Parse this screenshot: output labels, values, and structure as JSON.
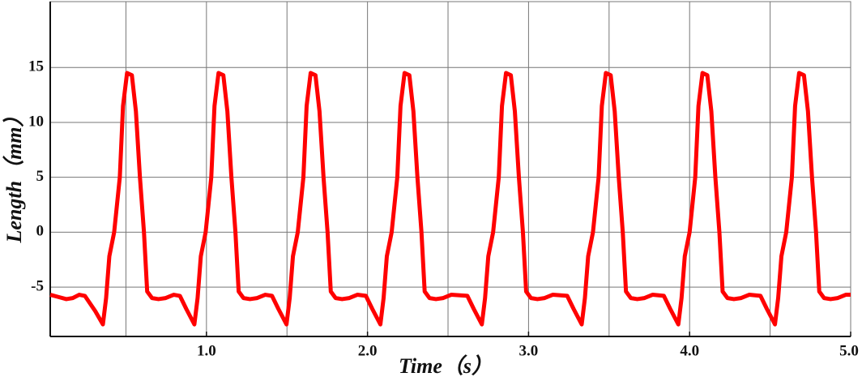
{
  "chart_data": {
    "type": "line",
    "xlabel": "Time（s）",
    "ylabel": "Length（mm）",
    "xlim": [
      0.03,
      5.0
    ],
    "ylim": [
      -9.5,
      21
    ],
    "xticks": [
      {
        "value": 1,
        "label": "1.0"
      },
      {
        "value": 2,
        "label": "2.0"
      },
      {
        "value": 3,
        "label": "3.0"
      },
      {
        "value": 4,
        "label": "4.0"
      },
      {
        "value": 5,
        "label": "5.0"
      }
    ],
    "xgrid": [
      0.5,
      1,
      1.5,
      2,
      2.5,
      3,
      3.5,
      4,
      4.5
    ],
    "yticks": [
      -5,
      0,
      5,
      10,
      15
    ],
    "grid": true,
    "x": [
      0.03,
      0.08,
      0.13,
      0.17,
      0.21,
      0.245,
      0.31,
      0.357,
      0.377,
      0.397,
      0.427,
      0.462,
      0.482,
      0.507,
      0.537,
      0.562,
      0.587,
      0.612,
      0.632,
      0.662,
      0.702,
      0.747,
      0.797,
      0.835,
      0.875,
      0.925,
      0.945,
      0.965,
      0.995,
      1.03,
      1.05,
      1.075,
      1.105,
      1.13,
      1.155,
      1.18,
      1.2,
      1.23,
      1.27,
      1.315,
      1.365,
      1.407,
      1.447,
      1.497,
      1.517,
      1.537,
      1.567,
      1.602,
      1.622,
      1.647,
      1.677,
      1.702,
      1.727,
      1.752,
      1.772,
      1.802,
      1.842,
      1.887,
      1.937,
      1.99,
      2.03,
      2.08,
      2.1,
      2.12,
      2.15,
      2.185,
      2.205,
      2.23,
      2.26,
      2.285,
      2.31,
      2.335,
      2.355,
      2.385,
      2.425,
      2.47,
      2.52,
      2.62,
      2.66,
      2.71,
      2.73,
      2.75,
      2.78,
      2.815,
      2.835,
      2.86,
      2.89,
      2.915,
      2.94,
      2.965,
      2.985,
      3.015,
      3.055,
      3.1,
      3.15,
      3.24,
      3.28,
      3.33,
      3.35,
      3.37,
      3.4,
      3.435,
      3.455,
      3.48,
      3.51,
      3.535,
      3.56,
      3.585,
      3.605,
      3.635,
      3.675,
      3.72,
      3.77,
      3.84,
      3.88,
      3.93,
      3.95,
      3.97,
      4.0,
      4.035,
      4.055,
      4.08,
      4.11,
      4.135,
      4.16,
      4.185,
      4.205,
      4.235,
      4.275,
      4.32,
      4.37,
      4.44,
      4.48,
      4.53,
      4.55,
      4.57,
      4.6,
      4.635,
      4.655,
      4.68,
      4.71,
      4.735,
      4.76,
      4.785,
      4.805,
      4.835,
      4.875,
      4.92,
      4.97,
      5.0
    ],
    "series": [
      {
        "color": "#ff0000",
        "values": [
          -5.7,
          -5.9,
          -6.1,
          -6,
          -5.7,
          -5.8,
          -7.2,
          -8.4,
          -6,
          -2.2,
          0,
          5,
          11.5,
          14.5,
          14.3,
          11,
          5,
          0,
          -5.4,
          -6,
          -6.1,
          -6,
          -5.7,
          -5.8,
          -7,
          -8.4,
          -6,
          -2.2,
          0,
          5,
          11.5,
          14.5,
          14.3,
          11,
          5,
          0,
          -5.4,
          -6,
          -6.1,
          -6,
          -5.7,
          -5.8,
          -7,
          -8.4,
          -6,
          -2.2,
          0,
          5,
          11.5,
          14.5,
          14.3,
          11,
          5,
          0,
          -5.4,
          -6,
          -6.1,
          -6,
          -5.7,
          -5.8,
          -7,
          -8.4,
          -6,
          -2.2,
          0,
          5,
          11.5,
          14.5,
          14.3,
          11,
          5,
          0,
          -5.4,
          -6,
          -6.1,
          -6,
          -5.7,
          -5.8,
          -7,
          -8.4,
          -6,
          -2.2,
          0,
          5,
          11.5,
          14.5,
          14.3,
          11,
          5,
          0,
          -5.4,
          -6,
          -6.1,
          -6,
          -5.7,
          -5.8,
          -7,
          -8.4,
          -6,
          -2.2,
          0,
          5,
          11.5,
          14.5,
          14.3,
          11,
          5,
          0,
          -5.4,
          -6,
          -6.1,
          -6,
          -5.7,
          -5.8,
          -7,
          -8.4,
          -6,
          -2.2,
          0,
          5,
          11.5,
          14.5,
          14.3,
          11,
          5,
          0,
          -5.4,
          -6,
          -6.1,
          -6,
          -5.7,
          -5.8,
          -7,
          -8.4,
          -6,
          -2.2,
          0,
          5,
          11.5,
          14.5,
          14.3,
          11,
          5,
          0,
          -5.4,
          -6,
          -6.1,
          -6,
          -5.7,
          -5.7
        ]
      }
    ]
  }
}
